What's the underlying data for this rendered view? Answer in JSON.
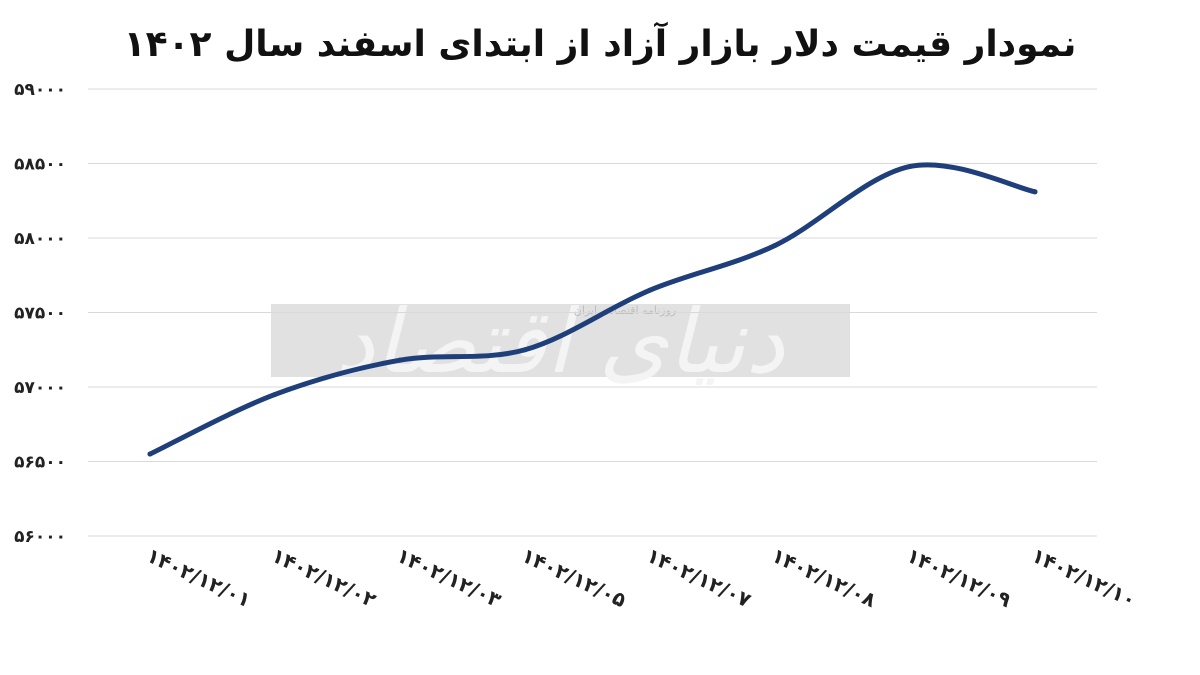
{
  "chart_data": {
    "type": "line",
    "title": "نمودار قیمت دلار بازار آزاد از ابتدای اسفند سال ۱۴۰۲",
    "categories": [
      "۱۴۰۲/۱۲/۰۱",
      "۱۴۰۲/۱۲/۰۲",
      "۱۴۰۲/۱۲/۰۳",
      "۱۴۰۲/۱۲/۰۵",
      "۱۴۰۲/۱۲/۰۷",
      "۱۴۰۲/۱۲/۰۸",
      "۱۴۰۲/۱۲/۰۹",
      "۱۴۰۲/۱۲/۱۰"
    ],
    "series": [
      {
        "values": [
          56550,
          56950,
          57180,
          57250,
          57650,
          57950,
          58480,
          58310
        ],
        "color": "#1f3f7a"
      }
    ],
    "ylim": [
      56000,
      59000
    ],
    "yticks": [
      56000,
      56500,
      57000,
      57500,
      58000,
      58500,
      59000
    ],
    "ytick_labels": [
      "۵۶۰۰۰",
      "۵۶۵۰۰",
      "۵۷۰۰۰",
      "۵۷۵۰۰",
      "۵۸۰۰۰",
      "۵۸۵۰۰",
      "۵۹۰۰۰"
    ],
    "xlabel": "",
    "ylabel": "",
    "grid": true,
    "legend": "none"
  },
  "watermark": {
    "text": "دنیای اقتصاد",
    "subtext": "روزنامه اقتصادی ایران"
  }
}
